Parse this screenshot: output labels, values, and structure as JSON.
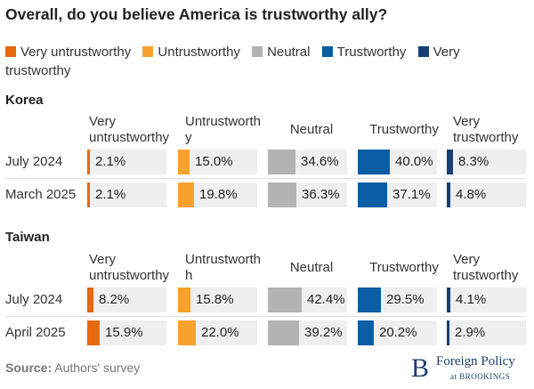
{
  "title": "Overall, do you believe America is trustworthy ally?",
  "colors": {
    "very_untrustworthy": "#e8690d",
    "untrustworthy": "#f9a12e",
    "neutral": "#b3b3b3",
    "trustworthy": "#0b5da4",
    "very_trustworthy": "#163f74",
    "cell_bg": "#efefef"
  },
  "legend": [
    {
      "label": "Very untrustworthy",
      "color": "#e8690d"
    },
    {
      "label": "Untrustworthy",
      "color": "#f9a12e"
    },
    {
      "label": "Neutral",
      "color": "#b3b3b3"
    },
    {
      "label": "Trustworthy",
      "color": "#0b5da4"
    },
    {
      "label": "Very trustworthy",
      "color": "#163f74"
    }
  ],
  "column_headers_korea": [
    "Very untrustworthy",
    "Untrustworth y",
    "Neutral",
    "Trustworthy",
    "Very trustworthy"
  ],
  "column_headers_taiwan": [
    "Very untrustworthy",
    "Untrustworth h",
    "Neutral",
    "Trustworthy",
    "Very trustworthy"
  ],
  "chart_data": {
    "type": "table",
    "title": "Overall, do you believe America is trustworthy ally?",
    "unit": "%",
    "value_max": 100,
    "categories": [
      "Very untrustworthy",
      "Untrustworthy",
      "Neutral",
      "Trustworthy",
      "Very trustworthy"
    ],
    "groups": [
      {
        "name": "Korea",
        "rows": [
          {
            "label": "July 2024",
            "values": [
              2.1,
              15.0,
              34.6,
              40.0,
              8.3
            ],
            "display": [
              "2.1%",
              "15.0%",
              "34.6%",
              "40.0%",
              "8.3%"
            ]
          },
          {
            "label": "March 2025",
            "values": [
              2.1,
              19.8,
              36.3,
              37.1,
              4.8
            ],
            "display": [
              "2.1%",
              "19.8%",
              "36.3%",
              "37.1%",
              "4.8%"
            ]
          }
        ]
      },
      {
        "name": "Taiwan",
        "rows": [
          {
            "label": "July 2024",
            "values": [
              8.2,
              15.8,
              42.4,
              29.5,
              4.1
            ],
            "display": [
              "8.2%",
              "15.8%",
              "42.4%",
              "29.5%",
              "4.1%"
            ]
          },
          {
            "label": "April 2025",
            "values": [
              15.9,
              22.0,
              39.2,
              20.2,
              2.9
            ],
            "display": [
              "15.9%",
              "22.0%",
              "39.2%",
              "20.2%",
              "2.9%"
            ]
          }
        ]
      }
    ]
  },
  "source_label": "Source:",
  "source_text": "Authors' survey",
  "logo": {
    "mark": "B",
    "line1": "Foreign Policy",
    "line2": "at BROOKINGS"
  }
}
